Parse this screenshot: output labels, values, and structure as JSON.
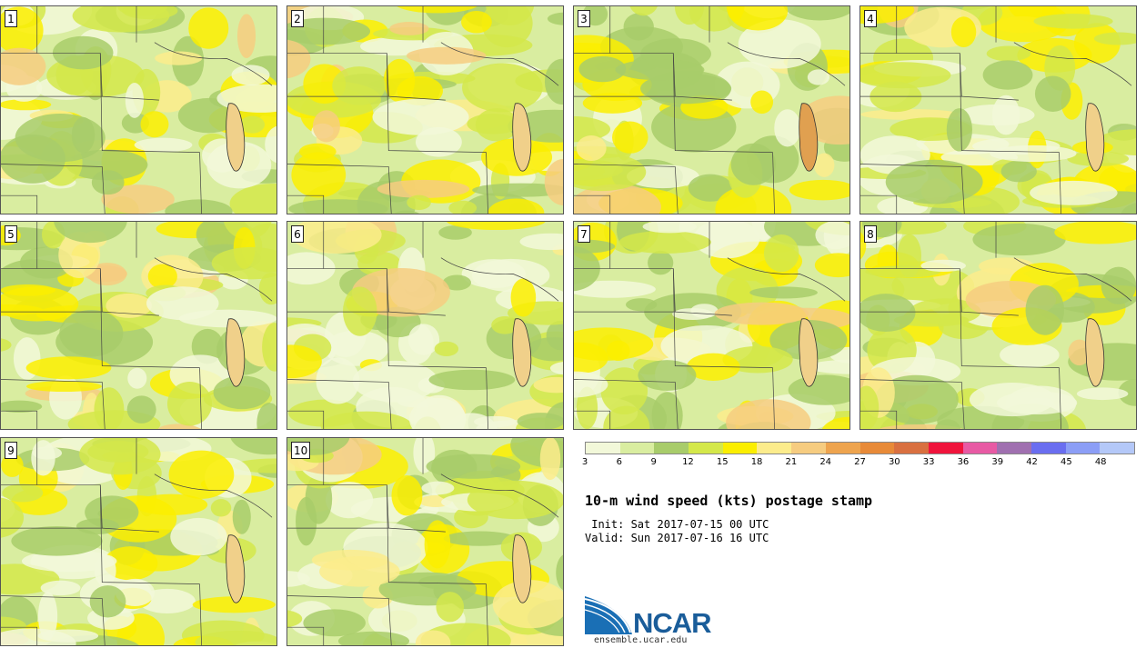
{
  "panels": [
    {
      "label": "1"
    },
    {
      "label": "2"
    },
    {
      "label": "3"
    },
    {
      "label": "4"
    },
    {
      "label": "5"
    },
    {
      "label": "6"
    },
    {
      "label": "7"
    },
    {
      "label": "8"
    },
    {
      "label": "9"
    },
    {
      "label": "10"
    }
  ],
  "colorbar": {
    "colors": [
      "#f2f8d9",
      "#d9eda0",
      "#a8cc6a",
      "#d4e84a",
      "#fbee00",
      "#fcec8c",
      "#f6cc80",
      "#eea44e",
      "#e88a38",
      "#d97040",
      "#f0143c",
      "#e85aa4",
      "#a070b0",
      "#6a6ef0",
      "#8c9ef6",
      "#b4c8f8"
    ],
    "tick_labels": [
      "3",
      "6",
      "9",
      "12",
      "15",
      "18",
      "21",
      "24",
      "27",
      "30",
      "33",
      "36",
      "39",
      "42",
      "45",
      "48"
    ]
  },
  "title": "10-m wind speed (kts) postage stamp",
  "init_text": " Init: Sat 2017-07-15 00 UTC",
  "valid_text": "Valid: Sun 2017-07-16 16 UTC",
  "logo_text": "NCAR",
  "url_text": "ensemble.ucar.edu"
}
